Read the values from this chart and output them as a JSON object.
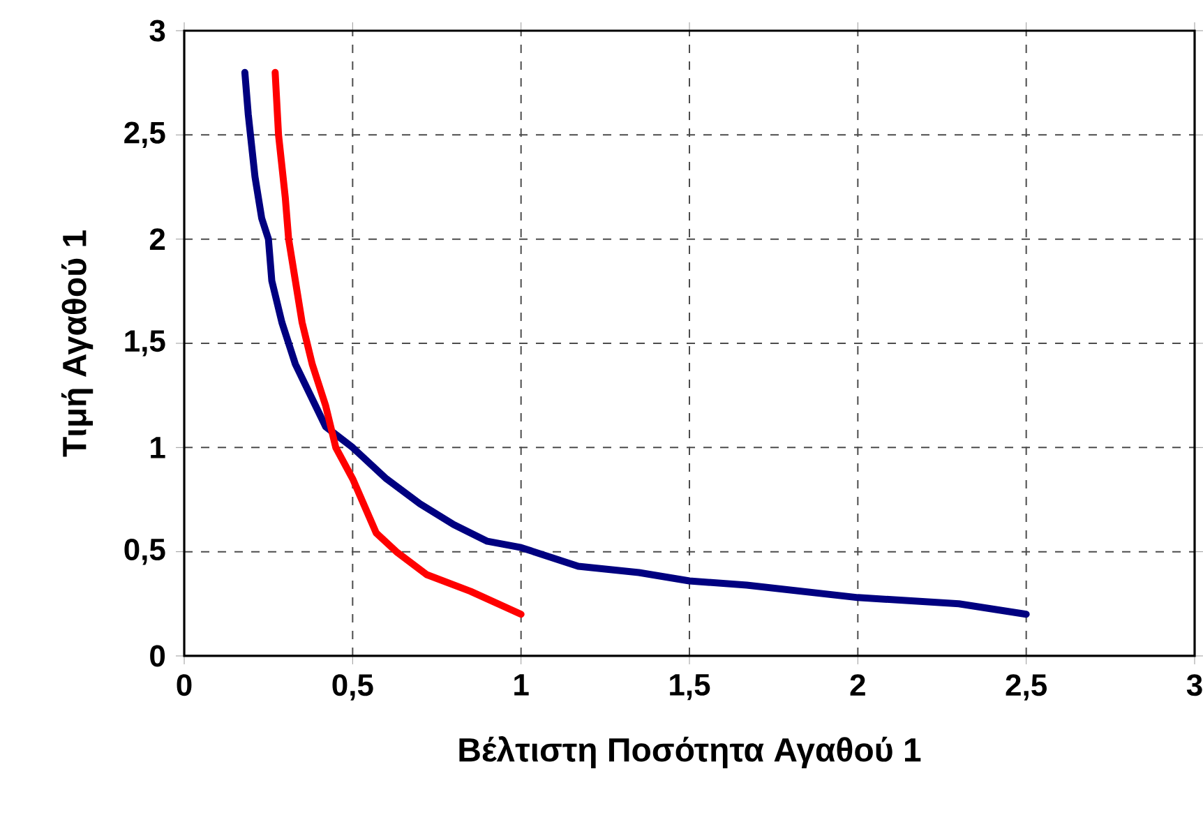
{
  "chart_data": {
    "type": "line",
    "xlabel": "Βέλτιστη Ποσότητα Αγαθού 1",
    "ylabel": "Τιμή Αγαθού 1",
    "series": [
      {
        "color": "#000080",
        "x": [
          0.18,
          0.19,
          0.2,
          0.21,
          0.23,
          0.25,
          0.26,
          0.29,
          0.33,
          0.36,
          0.42,
          0.5,
          0.6,
          0.7,
          0.8,
          0.9,
          1.0,
          1.17,
          1.35,
          1.5,
          1.67,
          2.0,
          2.3,
          2.5
        ],
        "values": [
          2.8,
          2.6,
          2.45,
          2.3,
          2.1,
          2.0,
          1.8,
          1.6,
          1.4,
          1.3,
          1.1,
          1.0,
          0.85,
          0.73,
          0.63,
          0.55,
          0.52,
          0.43,
          0.4,
          0.36,
          0.34,
          0.28,
          0.25,
          0.2
        ]
      },
      {
        "color": "#ff0000",
        "x": [
          0.27,
          0.28,
          0.3,
          0.31,
          0.33,
          0.35,
          0.38,
          0.42,
          0.45,
          0.5,
          0.57,
          0.63,
          0.72,
          0.85,
          1.0
        ],
        "values": [
          2.8,
          2.5,
          2.2,
          2.0,
          1.8,
          1.6,
          1.4,
          1.2,
          1.0,
          0.85,
          0.59,
          0.5,
          0.39,
          0.31,
          0.2
        ]
      }
    ],
    "xlim": [
      0,
      3
    ],
    "ylim": [
      0,
      3
    ],
    "xticks": [
      0,
      {
        "value": 0.5,
        "label": "0,5"
      },
      1,
      {
        "value": 1.5,
        "label": "1,5"
      },
      2,
      {
        "value": 2.5,
        "label": "2,5"
      },
      3
    ],
    "yticks": [
      0,
      {
        "value": 0.5,
        "label": "0,5"
      },
      1,
      {
        "value": 1.5,
        "label": "1,5"
      },
      2,
      {
        "value": 2.5,
        "label": "2,5"
      },
      3
    ],
    "grid": true,
    "marker": "none",
    "line_style": "solid"
  }
}
